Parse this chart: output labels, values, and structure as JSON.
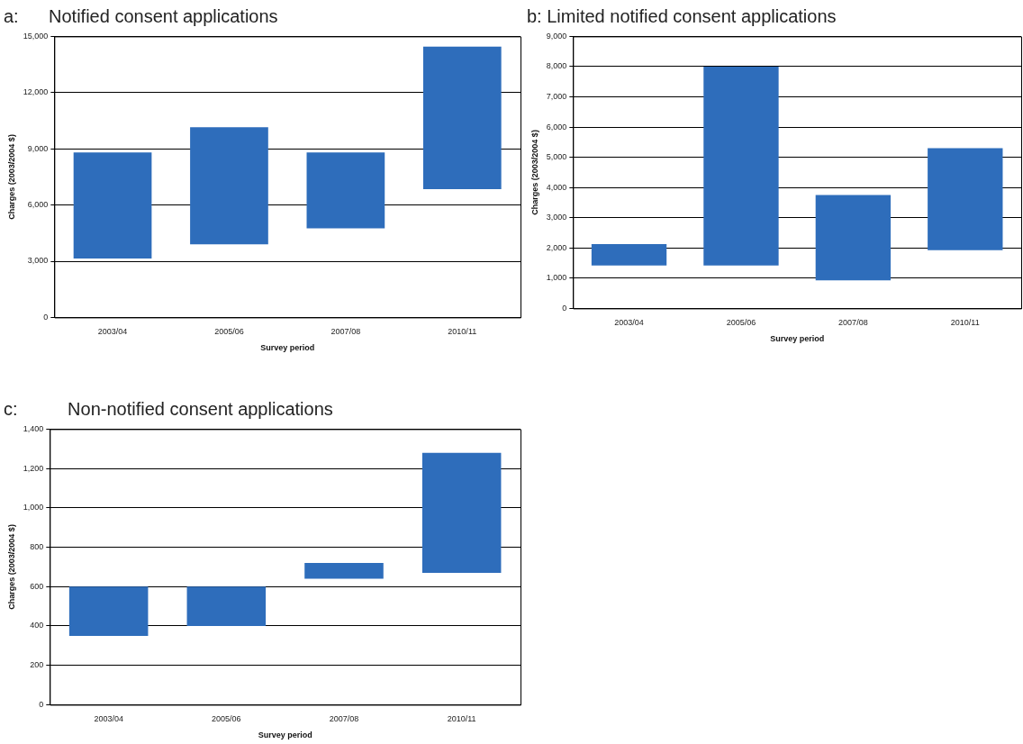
{
  "chart_data": [
    {
      "type": "bar",
      "title": "a:      Notified consent applications",
      "xlabel": "Survey period",
      "ylabel": "Charges (2003/2004 $)",
      "categories": [
        "2003/04",
        "2005/06",
        "2007/08",
        "2010/11"
      ],
      "base": [
        3150,
        3900,
        4750,
        6850
      ],
      "values": [
        5650,
        6250,
        4050,
        7600
      ],
      "color": "#2e6dbb",
      "ylim": [
        0,
        15000
      ],
      "yticks": [
        0,
        {
          "value": 3000,
          "label": "3,000"
        },
        {
          "value": 6000,
          "label": "6,000"
        },
        {
          "value": 9000,
          "label": "9,000"
        },
        {
          "value": 12000,
          "label": "12,000"
        },
        {
          "value": 15000,
          "label": "15,000"
        }
      ],
      "grid": "y"
    },
    {
      "type": "bar",
      "title": "b: Limited notified consent applications",
      "xlabel": "Survey period",
      "ylabel": "Charges (2003/2004 $)",
      "categories": [
        "2003/04",
        "2005/06",
        "2007/08",
        "2010/11"
      ],
      "base": [
        1420,
        1420,
        930,
        1930
      ],
      "values": [
        710,
        6580,
        2820,
        3370
      ],
      "color": "#2e6dbb",
      "ylim": [
        0,
        9000
      ],
      "yticks": [
        0,
        {
          "value": 1000,
          "label": "1,000"
        },
        {
          "value": 2000,
          "label": "2,000"
        },
        {
          "value": 3000,
          "label": "3,000"
        },
        {
          "value": 4000,
          "label": "4,000"
        },
        {
          "value": 5000,
          "label": "5,000"
        },
        {
          "value": 6000,
          "label": "6,000"
        },
        {
          "value": 7000,
          "label": "7,000"
        },
        {
          "value": 8000,
          "label": "8,000"
        },
        {
          "value": 9000,
          "label": "9,000"
        }
      ],
      "grid": "y"
    },
    {
      "type": "bar",
      "title": "c:          Non-notified consent applications",
      "xlabel": "Survey period",
      "ylabel": "Charges (2003/2004 $)",
      "categories": [
        "2003/04",
        "2005/06",
        "2007/08",
        "2010/11"
      ],
      "base": [
        350,
        400,
        640,
        670
      ],
      "values": [
        250,
        200,
        80,
        610
      ],
      "color": "#2e6dbb",
      "ylim": [
        0,
        1400
      ],
      "yticks": [
        0,
        200,
        400,
        600,
        800,
        {
          "value": 1000,
          "label": "1,000"
        },
        {
          "value": 1200,
          "label": "1,200"
        },
        {
          "value": 1400,
          "label": "1,400"
        }
      ],
      "grid": "y"
    }
  ]
}
